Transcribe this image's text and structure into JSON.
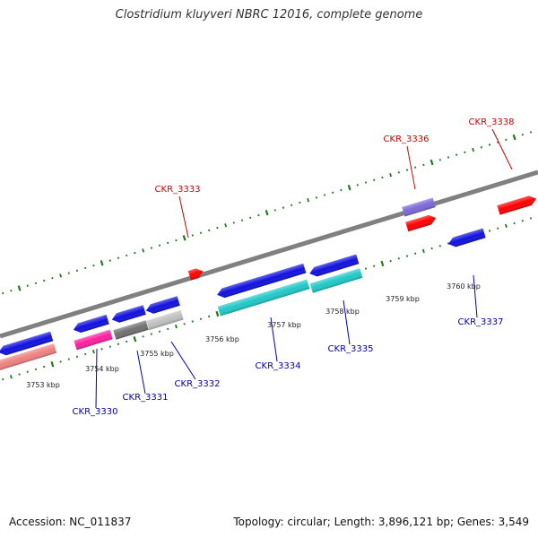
{
  "title": "Clostridium kluyveri NBRC 12016, complete genome",
  "footer": {
    "accession": "Accession: NC_011837",
    "summary": "Topology: circular; Length: 3,896,121 bp; Genes: 3,549"
  },
  "kbp_labels": [
    {
      "text": "3753 kbp"
    },
    {
      "text": "3754 kbp"
    },
    {
      "text": "3755 kbp"
    },
    {
      "text": "3756 kbp"
    },
    {
      "text": "3757 kbp"
    },
    {
      "text": "3758 kbp"
    },
    {
      "text": "3759 kbp"
    },
    {
      "text": "3760 kbp"
    }
  ],
  "gene_labels": [
    {
      "text": "CKR_3330",
      "color": "#0000aa"
    },
    {
      "text": "CKR_3331",
      "color": "#0000aa"
    },
    {
      "text": "CKR_3332",
      "color": "#0000aa"
    },
    {
      "text": "CKR_3333",
      "color": "#cc0000"
    },
    {
      "text": "CKR_3334",
      "color": "#0000aa"
    },
    {
      "text": "CKR_3335",
      "color": "#0000aa"
    },
    {
      "text": "CKR_3336",
      "color": "#cc0000"
    },
    {
      "text": "CKR_3337",
      "color": "#0000aa"
    },
    {
      "text": "CKR_3338",
      "color": "#cc0000"
    }
  ],
  "colors": {
    "backbone": "#808080",
    "ticks": "#1f7a1f",
    "forward_cds": "#ff0000",
    "reverse_cds": "#1010e0",
    "cyan_feature": "#20c8c8",
    "magenta_feature": "#ff20a0",
    "purple_feature": "#7b68d8",
    "salmon_feature": "#f08080",
    "grey_dark": "#707070",
    "grey_light": "#c0c0c0"
  }
}
